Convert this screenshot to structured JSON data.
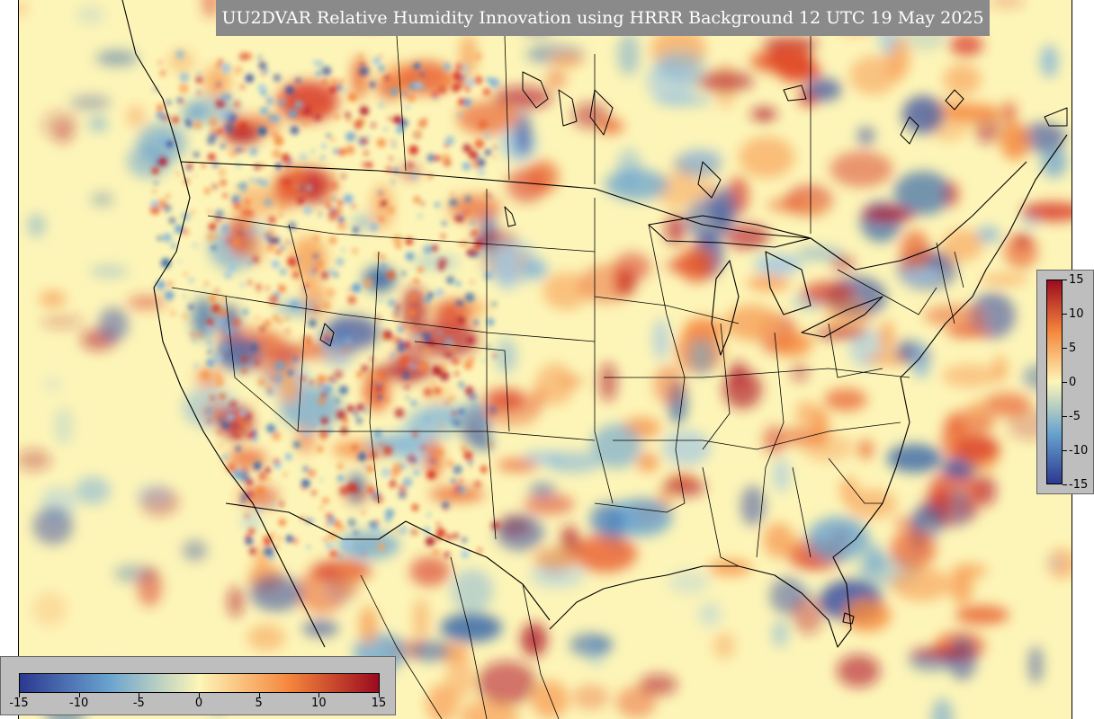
{
  "title": "UU2DVAR Relative Humidity Innovation using HRRR Background 12 UTC 19 May 2025",
  "colorbar": {
    "min": -15,
    "max": 15,
    "ticks": [
      "-15",
      "-10",
      "-5",
      "0",
      "5",
      "10",
      "15"
    ],
    "colors": {
      "negative_max": "#2b3990",
      "negative_mid": "#6aa3cf",
      "neutral": "#fdf5b8",
      "positive_mid": "#f5863c",
      "positive_max": "#9b0a1f"
    }
  },
  "map": {
    "background_color": "#fdf5b8",
    "boundaries": [
      "coastlines",
      "country-borders",
      "state-borders"
    ]
  }
}
